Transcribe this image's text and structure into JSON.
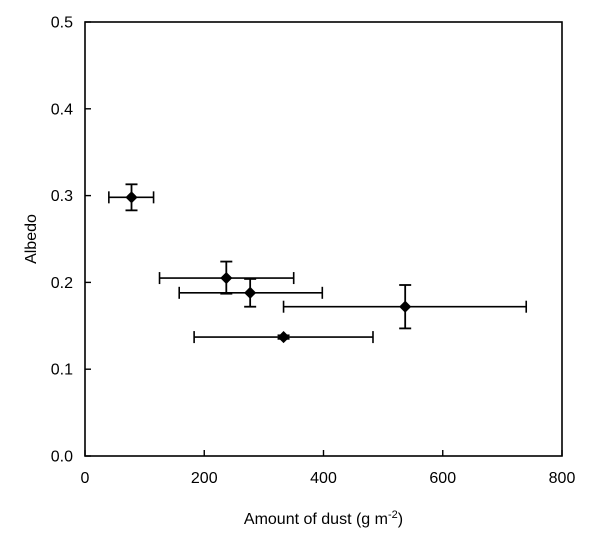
{
  "chart_data": {
    "type": "scatter",
    "title": "",
    "xlabel": "Amount of dust (g m",
    "xlabel_superscript": "-2",
    "xlabel_suffix": ")",
    "ylabel": "Albedo",
    "xlim": [
      0,
      800
    ],
    "ylim": [
      0,
      0.5
    ],
    "x_ticks": [
      0,
      200,
      400,
      600,
      800
    ],
    "y_ticks": [
      0.0,
      0.1,
      0.2,
      0.3,
      0.4,
      0.5
    ],
    "x_tick_labels": [
      "0",
      "200",
      "400",
      "600",
      "800"
    ],
    "y_tick_labels": [
      "0.0",
      "0.1",
      "0.2",
      "0.3",
      "0.4",
      "0.5"
    ],
    "grid": false,
    "legend": "none",
    "marker": "diamond",
    "color": "#000000",
    "points": [
      {
        "x": 78,
        "y": 0.298,
        "x_err_low": 40,
        "x_err_high": 115,
        "y_err_low": 0.283,
        "y_err_high": 0.313
      },
      {
        "x": 237,
        "y": 0.205,
        "x_err_low": 125,
        "x_err_high": 350,
        "y_err_low": 0.187,
        "y_err_high": 0.224
      },
      {
        "x": 277,
        "y": 0.188,
        "x_err_low": 158,
        "x_err_high": 398,
        "y_err_low": 0.172,
        "y_err_high": 0.204
      },
      {
        "x": 537,
        "y": 0.172,
        "x_err_low": 333,
        "x_err_high": 740,
        "y_err_low": 0.147,
        "y_err_high": 0.197
      },
      {
        "x": 333,
        "y": 0.137,
        "x_err_low": 183,
        "x_err_high": 483,
        "y_err_low": 0.135,
        "y_err_high": 0.139
      }
    ]
  }
}
